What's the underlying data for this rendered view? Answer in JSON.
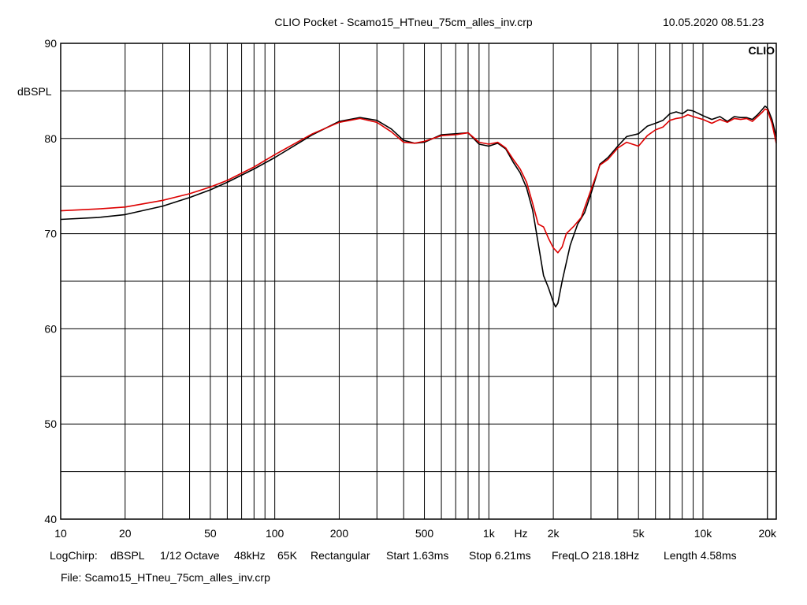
{
  "header": {
    "title": "CLIO Pocket - Scamo15_HTneu_75cm_alles_inv.crp",
    "datetime": "10.05.2020 08.51.23",
    "brand": "CLIO"
  },
  "footer": {
    "measure_line": [
      "LogChirp:",
      "dBSPL",
      "1/12 Octave",
      "48kHz",
      "65K",
      "Rectangular",
      "Start 1.63ms",
      "Stop 6.21ms",
      "FreqLO 218.18Hz",
      "Length 4.58ms"
    ],
    "file_line": "File: Scamo15_HTneu_75cm_alles_inv.crp"
  },
  "chart_data": {
    "type": "line",
    "title": "CLIO Pocket - Scamo15_HTneu_75cm_alles_inv.crp",
    "xlabel": "Hz",
    "ylabel": "dBSPL",
    "x_scale": "log",
    "xlim": [
      10,
      22000
    ],
    "ylim": [
      40,
      90
    ],
    "x_ticks": [
      {
        "value": 10,
        "label": "10"
      },
      {
        "value": 20,
        "label": "20"
      },
      {
        "value": 50,
        "label": "50"
      },
      {
        "value": 100,
        "label": "100"
      },
      {
        "value": 200,
        "label": "200"
      },
      {
        "value": 500,
        "label": "500"
      },
      {
        "value": 1000,
        "label": "1k"
      },
      {
        "value": 2000,
        "label": "2k"
      },
      {
        "value": 5000,
        "label": "5k"
      },
      {
        "value": 10000,
        "label": "10k"
      },
      {
        "value": 20000,
        "label": "20k"
      }
    ],
    "y_ticks": [
      {
        "value": 40,
        "label": "40"
      },
      {
        "value": 50,
        "label": "50"
      },
      {
        "value": 60,
        "label": "60"
      },
      {
        "value": 70,
        "label": "70"
      },
      {
        "value": 80,
        "label": "80"
      },
      {
        "value": 90,
        "label": "90"
      }
    ],
    "grid": true,
    "colors": {
      "series_1": "#000000",
      "series_2": "#dd0000",
      "grid": "#000000"
    },
    "series": [
      {
        "color": "#000000",
        "points": [
          [
            10,
            71.5
          ],
          [
            15,
            71.7
          ],
          [
            20,
            72.0
          ],
          [
            30,
            72.9
          ],
          [
            40,
            73.8
          ],
          [
            50,
            74.6
          ],
          [
            60,
            75.4
          ],
          [
            80,
            76.8
          ],
          [
            100,
            78.0
          ],
          [
            150,
            80.4
          ],
          [
            200,
            81.8
          ],
          [
            250,
            82.2
          ],
          [
            300,
            81.9
          ],
          [
            350,
            81.0
          ],
          [
            400,
            79.8
          ],
          [
            450,
            79.5
          ],
          [
            500,
            79.6
          ],
          [
            600,
            80.4
          ],
          [
            700,
            80.5
          ],
          [
            800,
            80.6
          ],
          [
            900,
            79.4
          ],
          [
            1000,
            79.2
          ],
          [
            1100,
            79.5
          ],
          [
            1200,
            78.9
          ],
          [
            1300,
            77.5
          ],
          [
            1400,
            76.4
          ],
          [
            1500,
            74.8
          ],
          [
            1600,
            72.5
          ],
          [
            1700,
            69.0
          ],
          [
            1800,
            65.6
          ],
          [
            1900,
            64.3
          ],
          [
            2000,
            62.8
          ],
          [
            2050,
            62.3
          ],
          [
            2100,
            62.7
          ],
          [
            2200,
            65.0
          ],
          [
            2400,
            68.8
          ],
          [
            2600,
            71.0
          ],
          [
            2800,
            72.2
          ],
          [
            3000,
            74.2
          ],
          [
            3300,
            77.3
          ],
          [
            3600,
            78.0
          ],
          [
            4000,
            79.2
          ],
          [
            4400,
            80.2
          ],
          [
            5000,
            80.5
          ],
          [
            5500,
            81.3
          ],
          [
            6000,
            81.6
          ],
          [
            6500,
            81.9
          ],
          [
            7000,
            82.6
          ],
          [
            7500,
            82.8
          ],
          [
            8000,
            82.6
          ],
          [
            8500,
            83.0
          ],
          [
            9000,
            82.9
          ],
          [
            10000,
            82.4
          ],
          [
            11000,
            82.0
          ],
          [
            12000,
            82.3
          ],
          [
            13000,
            81.8
          ],
          [
            14000,
            82.3
          ],
          [
            15000,
            82.2
          ],
          [
            16000,
            82.2
          ],
          [
            17000,
            82.0
          ],
          [
            18000,
            82.5
          ],
          [
            19000,
            83.1
          ],
          [
            19500,
            83.4
          ],
          [
            20000,
            83.2
          ],
          [
            21000,
            82.0
          ],
          [
            22000,
            80.2
          ]
        ]
      },
      {
        "color": "#dd0000",
        "points": [
          [
            10,
            72.4
          ],
          [
            15,
            72.6
          ],
          [
            20,
            72.8
          ],
          [
            30,
            73.5
          ],
          [
            40,
            74.2
          ],
          [
            50,
            74.9
          ],
          [
            60,
            75.6
          ],
          [
            80,
            77.0
          ],
          [
            100,
            78.3
          ],
          [
            150,
            80.5
          ],
          [
            200,
            81.7
          ],
          [
            250,
            82.1
          ],
          [
            300,
            81.7
          ],
          [
            350,
            80.7
          ],
          [
            400,
            79.6
          ],
          [
            450,
            79.5
          ],
          [
            500,
            79.7
          ],
          [
            600,
            80.3
          ],
          [
            700,
            80.4
          ],
          [
            800,
            80.6
          ],
          [
            900,
            79.6
          ],
          [
            1000,
            79.4
          ],
          [
            1100,
            79.6
          ],
          [
            1200,
            79.0
          ],
          [
            1300,
            77.8
          ],
          [
            1400,
            76.8
          ],
          [
            1500,
            75.4
          ],
          [
            1600,
            73.2
          ],
          [
            1700,
            71.0
          ],
          [
            1800,
            70.7
          ],
          [
            1900,
            69.5
          ],
          [
            2000,
            68.5
          ],
          [
            2100,
            68.0
          ],
          [
            2200,
            68.6
          ],
          [
            2300,
            70.0
          ],
          [
            2500,
            70.8
          ],
          [
            2700,
            71.7
          ],
          [
            3000,
            74.6
          ],
          [
            3300,
            77.2
          ],
          [
            3600,
            77.8
          ],
          [
            4000,
            79.0
          ],
          [
            4400,
            79.6
          ],
          [
            5000,
            79.2
          ],
          [
            5500,
            80.3
          ],
          [
            6000,
            80.9
          ],
          [
            6500,
            81.2
          ],
          [
            7000,
            81.9
          ],
          [
            7500,
            82.1
          ],
          [
            8000,
            82.2
          ],
          [
            8500,
            82.5
          ],
          [
            9000,
            82.3
          ],
          [
            10000,
            82.0
          ],
          [
            11000,
            81.6
          ],
          [
            12000,
            82.0
          ],
          [
            13000,
            81.7
          ],
          [
            14000,
            82.1
          ],
          [
            15000,
            82.0
          ],
          [
            16000,
            82.1
          ],
          [
            17000,
            81.8
          ],
          [
            18000,
            82.3
          ],
          [
            19000,
            82.8
          ],
          [
            19500,
            83.1
          ],
          [
            20000,
            83.0
          ],
          [
            21000,
            81.6
          ],
          [
            22000,
            79.5
          ]
        ]
      }
    ]
  }
}
